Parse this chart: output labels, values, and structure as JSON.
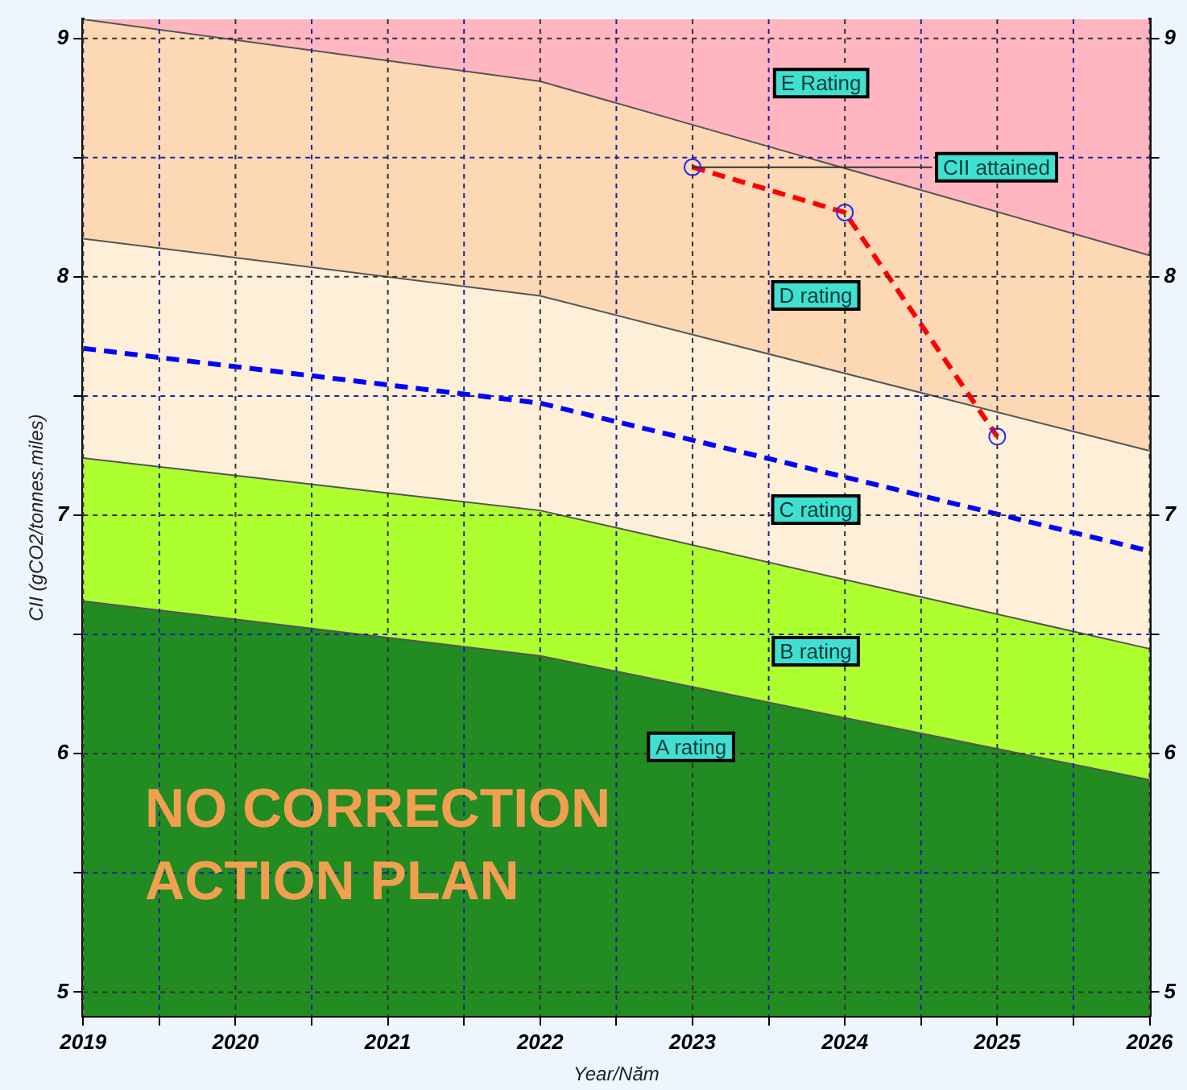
{
  "chart_data": {
    "type": "area",
    "xlabel": "Year/Năm",
    "ylabel": "CII (gCO2/tonnes.miles)",
    "xlim": [
      2019,
      2026
    ],
    "xticks": [
      2019,
      {
        "value": 2019.5,
        "label": null
      },
      2020,
      {
        "value": 2020.5,
        "label": null
      },
      2021,
      {
        "value": 2021.5,
        "label": null
      },
      2022,
      {
        "value": 2022.5,
        "label": null
      },
      2023,
      {
        "value": 2023.5,
        "label": null
      },
      2024,
      {
        "value": 2024.5,
        "label": null
      },
      2025,
      {
        "value": 2025.5,
        "label": null
      },
      2026
    ],
    "ylim": [
      4.9,
      9.08
    ],
    "yticks": [
      5,
      {
        "value": 5.5,
        "label": null
      },
      6,
      {
        "value": 6.5,
        "label": null
      },
      7,
      {
        "value": 7.5,
        "label": null
      },
      8,
      {
        "value": 8.5,
        "label": null
      },
      9
    ],
    "y2lim": [
      4.9,
      9.08
    ],
    "y2ticks": [
      5,
      {
        "value": 5.5,
        "label": null
      },
      6,
      {
        "value": 6.5,
        "label": null
      },
      7,
      {
        "value": 7.5,
        "label": null
      },
      8,
      {
        "value": 8.5,
        "label": null
      },
      9
    ],
    "grid": true,
    "legend": false,
    "bands": [
      {
        "axis": "y",
        "from": 4.9,
        "to": 9.08,
        "color": "#ffb6c1"
      }
    ],
    "series": [
      {
        "color": "#228b22",
        "x": [
          2019,
          2022,
          2026
        ],
        "values": [
          6.64,
          6.41,
          5.89
        ]
      },
      {
        "color": "#adff2f",
        "x": [
          2019,
          2022,
          2026
        ],
        "values": [
          7.24,
          7.02,
          6.44
        ]
      },
      {
        "color": "#feefd8",
        "x": [
          2019,
          2022,
          2026
        ],
        "values": [
          8.16,
          7.92,
          7.27
        ]
      },
      {
        "color": "#fdd8b5",
        "x": [
          2019,
          2022,
          2026
        ],
        "values": [
          9.08,
          8.82,
          8.09
        ]
      },
      {
        "type": "line",
        "color": "#0000ff",
        "line_style": "dashed",
        "marker": "none",
        "x": [
          2019,
          2022,
          2026
        ],
        "values": [
          7.7,
          7.47,
          6.85
        ]
      },
      {
        "type": "line",
        "name": "CII attained",
        "color": "#ff0000",
        "line_style": "dashed",
        "marker": "circle",
        "x": [
          2023,
          2024,
          2025
        ],
        "values": [
          8.46,
          8.27,
          7.33
        ]
      }
    ],
    "annotations": [
      "E Rating",
      "D rating",
      "C rating",
      "B rating",
      "A rating",
      "NO CORRECTION\nACTION PLAN"
    ]
  }
}
